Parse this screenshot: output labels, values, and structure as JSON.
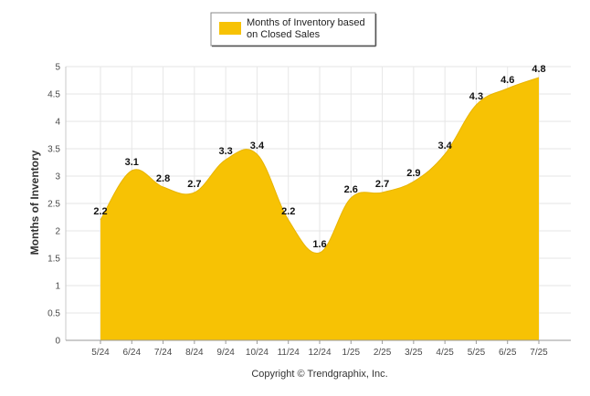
{
  "chart_data": {
    "type": "area",
    "categories": [
      "5/24",
      "6/24",
      "7/24",
      "8/24",
      "9/24",
      "10/24",
      "11/24",
      "12/24",
      "1/25",
      "2/25",
      "3/25",
      "4/25",
      "5/25",
      "6/25",
      "7/25"
    ],
    "series": [
      {
        "name": "Months of Inventory based on Closed Sales",
        "values": [
          2.2,
          3.1,
          2.8,
          2.7,
          3.3,
          3.4,
          2.2,
          1.6,
          2.6,
          2.7,
          2.9,
          3.4,
          4.3,
          4.6,
          4.8
        ],
        "color": "#f7c204"
      }
    ],
    "ylabel": "Months of Inventory",
    "ylim": [
      0,
      5
    ],
    "yticks": [
      "0",
      "0.5",
      "1",
      "1.5",
      "2",
      "2.5",
      "3",
      "3.5",
      "4",
      "4.5",
      "5"
    ],
    "grid": true,
    "legend_position": "top-center"
  },
  "legend": {
    "line1": "Months of Inventory based",
    "line2": "on Closed Sales"
  },
  "footer": {
    "copyright": "Copyright © Trendgraphix, Inc."
  }
}
